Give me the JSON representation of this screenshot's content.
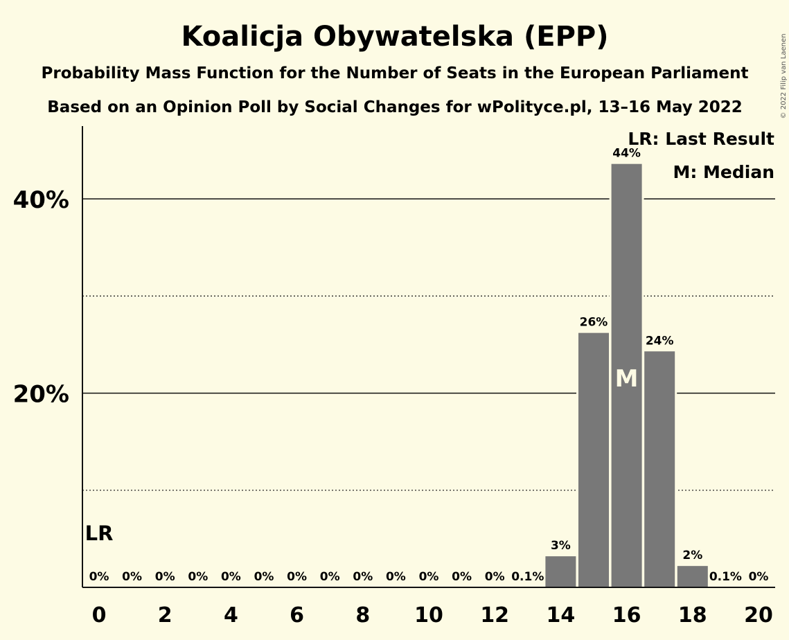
{
  "title": "Koalicja Obywatelska (EPP)",
  "subtitle1": "Probability Mass Function for the Number of Seats in the European Parliament",
  "subtitle2": "Based on an Opinion Poll by Social Changes for wPolityce.pl, 13–16 May 2022",
  "copyright": "© 2022 Filip van Laenen",
  "legend": {
    "last_result": "LR: Last Result",
    "median": "M: Median"
  },
  "colors": {
    "background": "#fdfbe4",
    "bar": "#787878",
    "text": "#111111"
  },
  "chart_data": {
    "type": "bar",
    "x": [
      0,
      1,
      2,
      3,
      4,
      5,
      6,
      7,
      8,
      9,
      10,
      11,
      12,
      13,
      14,
      15,
      16,
      17,
      18,
      19,
      20
    ],
    "values": [
      0,
      0,
      0,
      0,
      0,
      0,
      0,
      0,
      0,
      0,
      0,
      0,
      0,
      0.1,
      3.2,
      26.2,
      43.6,
      24.3,
      2.2,
      0.1,
      0
    ],
    "value_labels": [
      "0%",
      "0%",
      "0%",
      "0%",
      "0%",
      "0%",
      "0%",
      "0%",
      "0%",
      "0%",
      "0%",
      "0%",
      "0%",
      "0.1%",
      "3%",
      "26%",
      "44%",
      "24%",
      "2%",
      "0.1%",
      "0%"
    ],
    "x_tick_labels": [
      "0",
      "2",
      "4",
      "6",
      "8",
      "10",
      "12",
      "14",
      "16",
      "18",
      "20"
    ],
    "y_tick_labels": [
      "20%",
      "40%"
    ],
    "ylim": [
      0,
      47.5
    ],
    "grid_solid": [
      20,
      40
    ],
    "grid_dotted": [
      10,
      30
    ],
    "last_result_seat": 0,
    "last_result_label": "LR",
    "median_seat": 16,
    "median_label": "M"
  }
}
